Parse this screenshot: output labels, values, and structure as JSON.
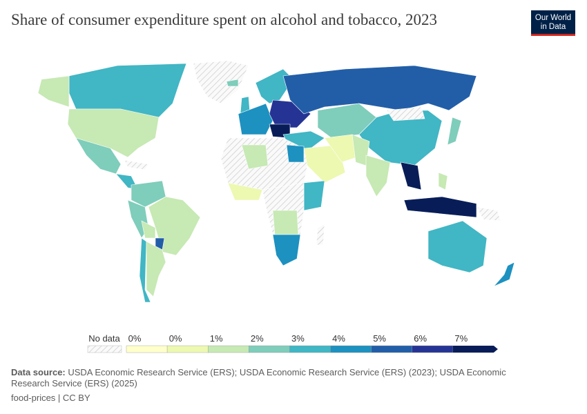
{
  "title": "Share of consumer expenditure spent on alcohol and tobacco, 2023",
  "logo": {
    "line1": "Our World",
    "line2": "in Data"
  },
  "legend": {
    "no_data_label": "No data",
    "tick_labels": [
      "0%",
      "0%",
      "1%",
      "2%",
      "3%",
      "4%",
      "5%",
      "6%",
      "7%"
    ],
    "bins": [
      "#ffffcc",
      "#edf8b1",
      "#c7e9b4",
      "#7fcdbb",
      "#41b6c4",
      "#1d91c0",
      "#225ea8",
      "#253494",
      "#081d58"
    ],
    "no_data_color": "#e6e6e6"
  },
  "footer": {
    "source_label": "Data source:",
    "source_text": " USDA Economic Research Service (ERS); USDA Economic Research Service (ERS) (2023); USDA Economic Research Service (ERS) (2025)",
    "license": "food-prices | CC BY"
  }
}
